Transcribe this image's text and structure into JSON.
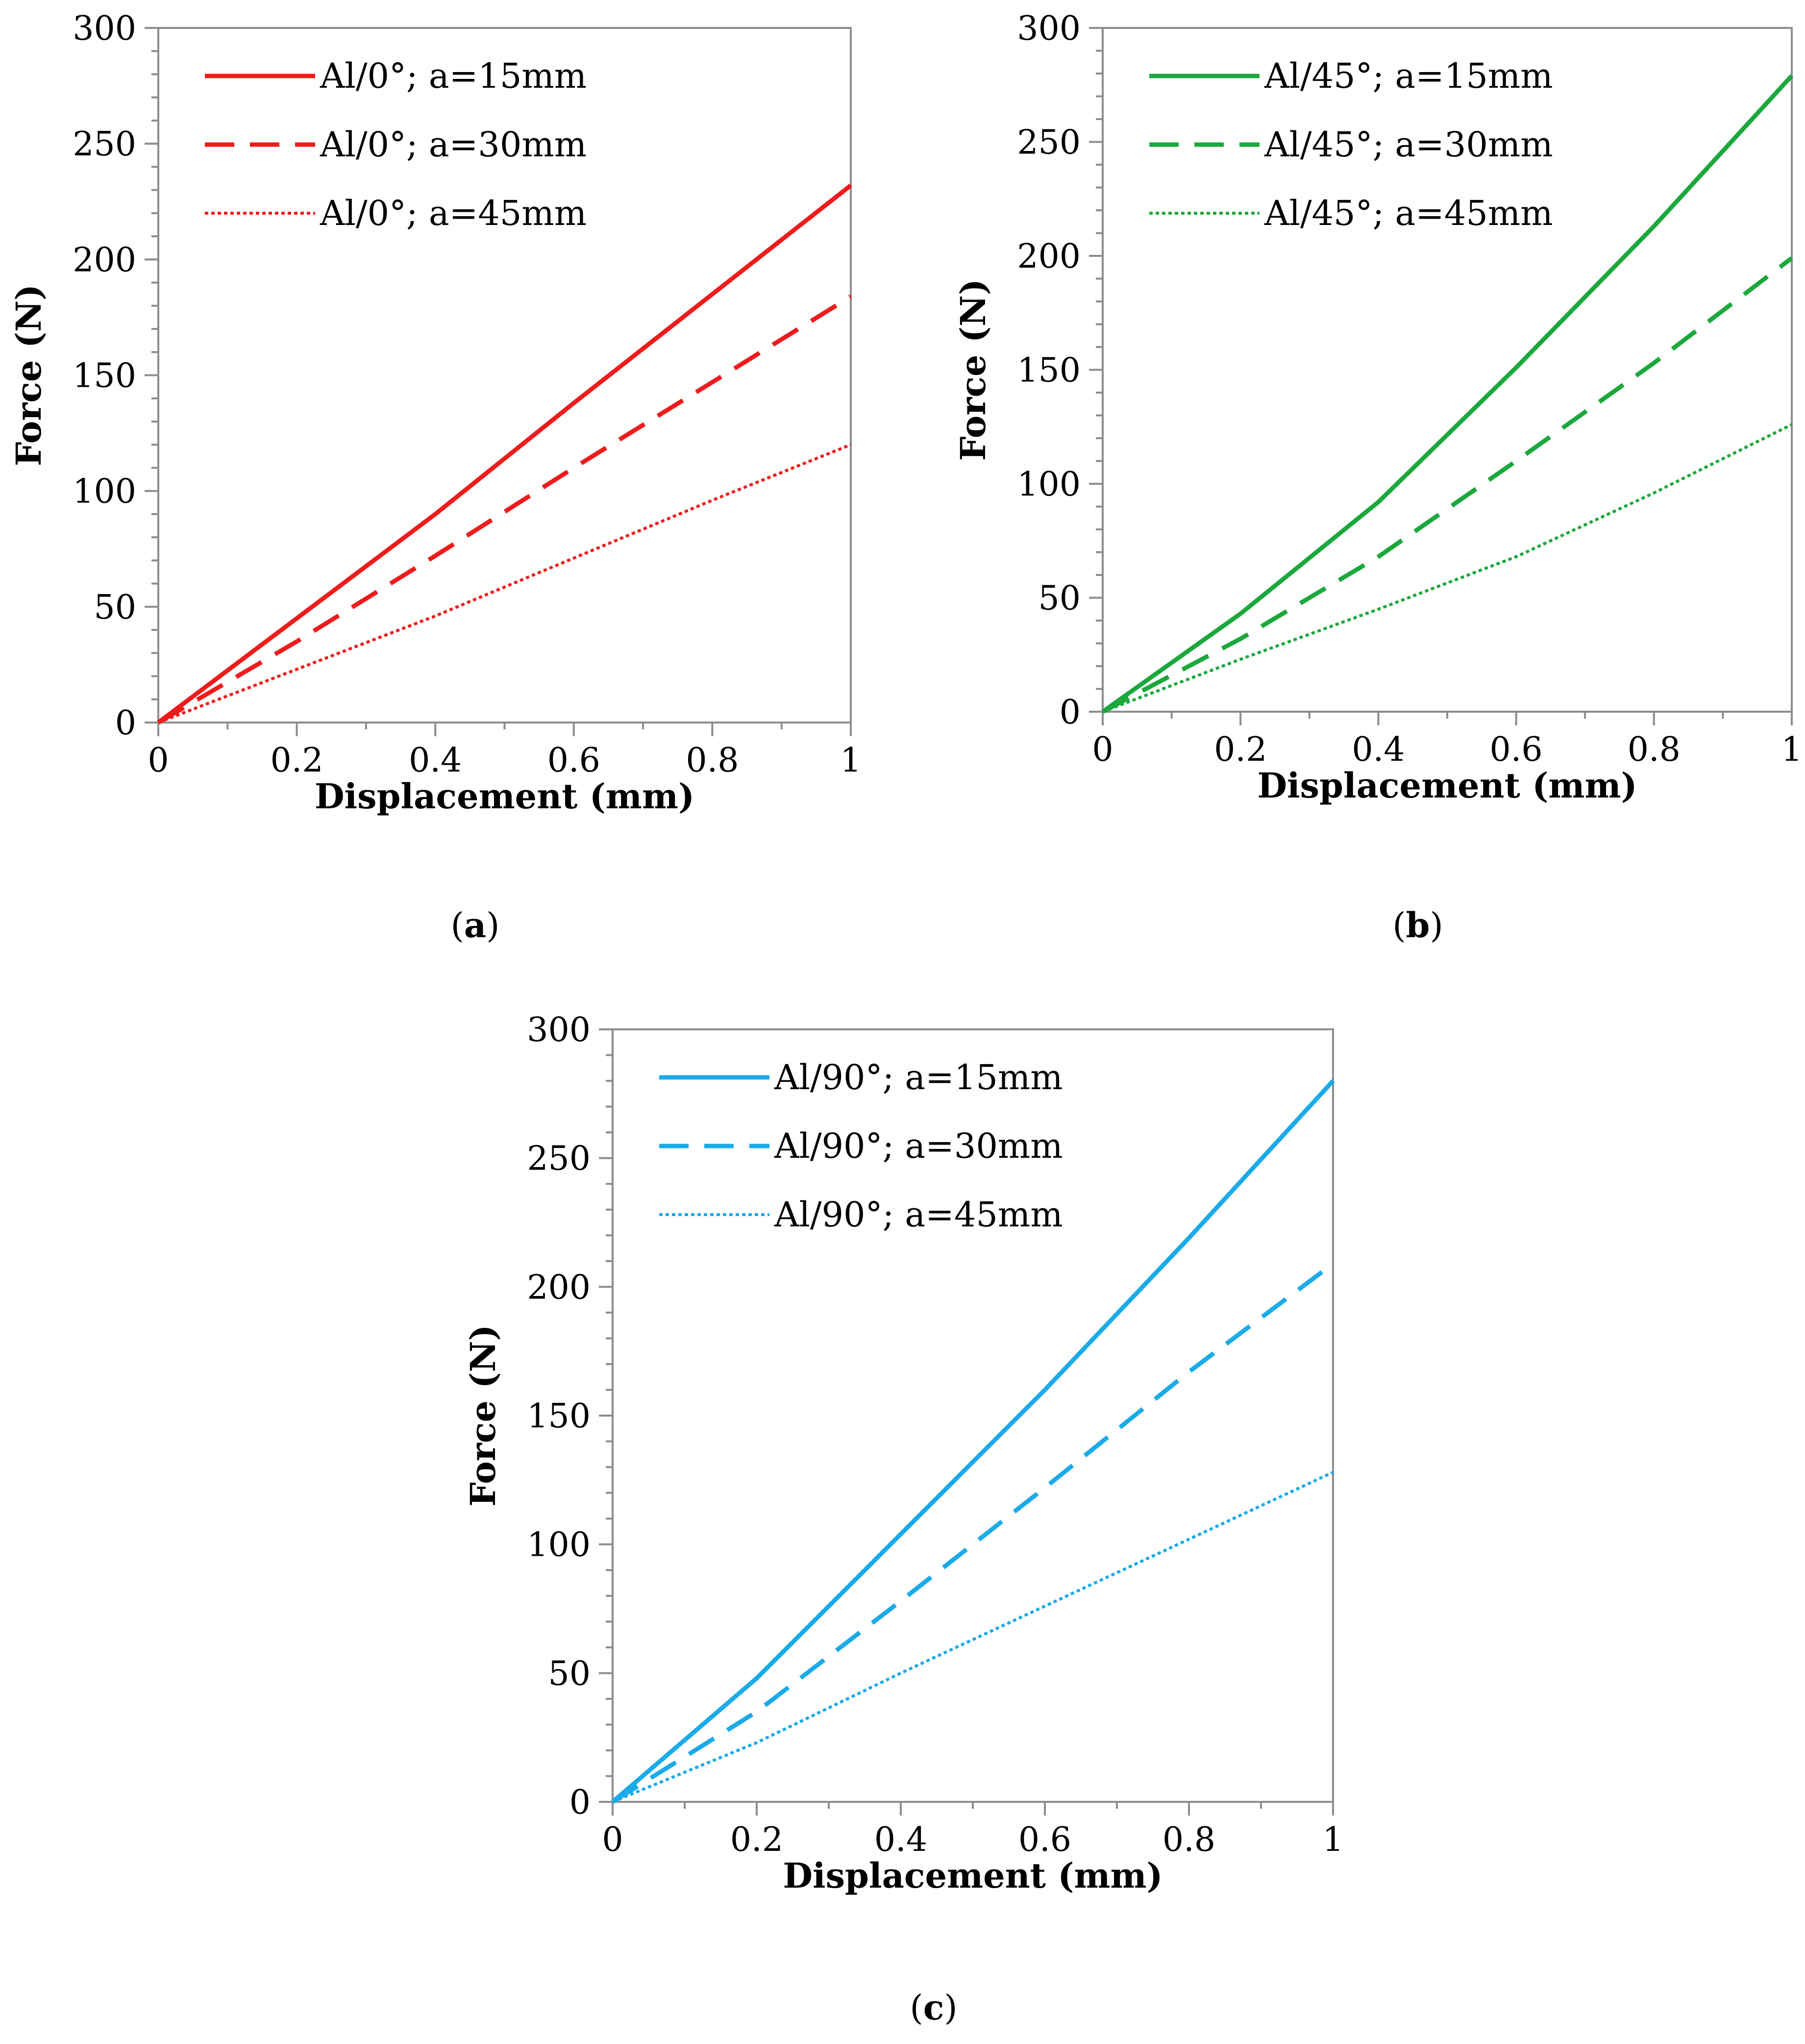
{
  "chart_data": [
    {
      "panel_label": "a",
      "type": "line",
      "xlabel": "Displacement (mm)",
      "ylabel": "Force (N)",
      "xlim": [
        0,
        1
      ],
      "ylim": [
        0,
        300
      ],
      "x_ticks": [
        "0",
        "0.2",
        "0.4",
        "0.6",
        "0.8",
        "1"
      ],
      "y_ticks": [
        "0",
        "50",
        "100",
        "150",
        "200",
        "250",
        "300"
      ],
      "grid": false,
      "legend_position": "top-left",
      "color": "#ee1c1c",
      "series": [
        {
          "name": "Al/0°; a=15mm",
          "style": "solid",
          "x": [
            0,
            0.2,
            0.4,
            0.6,
            0.8,
            1.0
          ],
          "values": [
            0,
            45,
            90,
            138,
            185,
            232
          ]
        },
        {
          "name": "Al/0°; a=30mm",
          "style": "dashed",
          "x": [
            0,
            0.2,
            0.4,
            0.6,
            0.8,
            1.0
          ],
          "values": [
            0,
            35,
            72,
            110,
            147,
            184
          ]
        },
        {
          "name": "Al/0°; a=45mm",
          "style": "dotted",
          "x": [
            0,
            0.2,
            0.4,
            0.6,
            0.8,
            1.0
          ],
          "values": [
            0,
            23,
            46,
            71,
            96,
            120
          ]
        }
      ]
    },
    {
      "panel_label": "b",
      "type": "line",
      "xlabel": "Displacement (mm)",
      "ylabel": "Force (N)",
      "xlim": [
        0,
        1
      ],
      "ylim": [
        0,
        300
      ],
      "x_ticks": [
        "0",
        "0.2",
        "0.4",
        "0.6",
        "0.8",
        "1"
      ],
      "y_ticks": [
        "0",
        "50",
        "100",
        "150",
        "200",
        "250",
        "300"
      ],
      "grid": false,
      "legend_position": "top-left",
      "color": "#1ba83c",
      "series": [
        {
          "name": "Al/45°; a=15mm",
          "style": "solid",
          "x": [
            0,
            0.2,
            0.4,
            0.6,
            0.8,
            1.0
          ],
          "values": [
            0,
            43,
            92,
            151,
            213,
            279
          ]
        },
        {
          "name": "Al/45°; a=30mm",
          "style": "dashed",
          "x": [
            0,
            0.2,
            0.4,
            0.6,
            0.8,
            1.0
          ],
          "values": [
            0,
            32,
            68,
            110,
            153,
            199
          ]
        },
        {
          "name": "Al/45°; a=45mm",
          "style": "dotted",
          "x": [
            0,
            0.2,
            0.4,
            0.6,
            0.8,
            1.0
          ],
          "values": [
            0,
            23,
            45,
            68,
            96,
            126
          ]
        }
      ]
    },
    {
      "panel_label": "c",
      "type": "line",
      "xlabel": "Displacement (mm)",
      "ylabel": "Force (N)",
      "xlim": [
        0,
        1
      ],
      "ylim": [
        0,
        300
      ],
      "x_ticks": [
        "0",
        "0.2",
        "0.4",
        "0.6",
        "0.8",
        "1"
      ],
      "y_ticks": [
        "0",
        "50",
        "100",
        "150",
        "200",
        "250",
        "300"
      ],
      "grid": false,
      "legend_position": "top-left",
      "color": "#1aabe8",
      "series": [
        {
          "name": "Al/90°; a=15mm",
          "style": "solid",
          "x": [
            0,
            0.2,
            0.4,
            0.6,
            0.8,
            1.0
          ],
          "values": [
            0,
            48,
            104,
            160,
            219,
            280
          ]
        },
        {
          "name": "Al/90°; a=30mm",
          "style": "dashed",
          "x": [
            0,
            0.2,
            0.4,
            0.6,
            0.8,
            1.0
          ],
          "values": [
            0,
            35,
            78,
            122,
            167,
            209
          ]
        },
        {
          "name": "Al/90°; a=45mm",
          "style": "dotted",
          "x": [
            0,
            0.2,
            0.4,
            0.6,
            0.8,
            1.0
          ],
          "values": [
            0,
            23,
            50,
            76,
            102,
            128
          ]
        }
      ]
    }
  ]
}
